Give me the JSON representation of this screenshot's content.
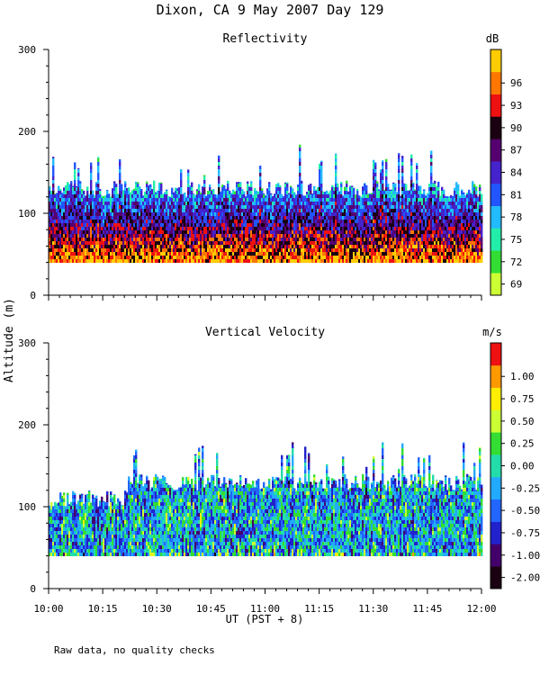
{
  "title": "Dixon, CA  9 May 2007  Day 129",
  "ylabel": "Altitude (m)",
  "xlabel": "UT  (PST + 8)",
  "footnote": "Raw data, no quality checks",
  "chart_data": [
    {
      "type": "heatmap",
      "title": "Reflectivity",
      "units": "dB",
      "xlabel": "UT  (PST + 8)",
      "ylabel": "Altitude (m)",
      "x_ticks": [
        "10:00",
        "10:15",
        "10:30",
        "10:45",
        "11:00",
        "11:15",
        "11:30",
        "11:45",
        "12:00"
      ],
      "x_range": [
        "10:00",
        "12:00"
      ],
      "ylim": [
        0,
        300
      ],
      "y_ticks": [
        0,
        100,
        200,
        300
      ],
      "colorbar": {
        "label": "dB",
        "levels": [
          69,
          72,
          75,
          78,
          81,
          84,
          87,
          90,
          93,
          96
        ],
        "level_labels": [
          "69",
          "72",
          "75",
          "78",
          "81",
          "84",
          "87",
          "90",
          "93",
          "96"
        ],
        "colors": [
          "#ccff33",
          "#33dd33",
          "#22eeaa",
          "#22bbff",
          "#2255ff",
          "#4422cc",
          "#55006f",
          "#1a0010",
          "#ee1111",
          "#ff7700",
          "#ffcc00"
        ]
      },
      "data_altitude_range": [
        40,
        180
      ],
      "typical_echo_top": [
        120,
        140
      ]
    },
    {
      "type": "heatmap",
      "title": "Vertical Velocity",
      "units": "m/s",
      "xlabel": "UT  (PST + 8)",
      "ylabel": "Altitude (m)",
      "x_ticks": [
        "10:00",
        "10:15",
        "10:30",
        "10:45",
        "11:00",
        "11:15",
        "11:30",
        "11:45",
        "12:00"
      ],
      "x_range": [
        "10:00",
        "12:00"
      ],
      "ylim": [
        0,
        300
      ],
      "y_ticks": [
        0,
        100,
        200,
        300
      ],
      "colorbar": {
        "label": "m/s",
        "levels": [
          -2.0,
          -1.0,
          -0.75,
          -0.5,
          -0.25,
          0.0,
          0.25,
          0.5,
          0.75,
          1.0
        ],
        "level_labels": [
          "-2.00",
          "-1.00",
          "-0.75",
          "-0.50",
          "-0.25",
          "0.00",
          "0.25",
          "0.50",
          "0.75",
          "1.00"
        ],
        "colors": [
          "#1a0010",
          "#44006a",
          "#2222cc",
          "#2266ff",
          "#22aaff",
          "#22ddaa",
          "#33dd33",
          "#ccff33",
          "#ffee00",
          "#ff9900",
          "#ee1111"
        ]
      },
      "data_altitude_range": [
        40,
        180
      ],
      "typical_echo_top": [
        120,
        140
      ]
    }
  ]
}
